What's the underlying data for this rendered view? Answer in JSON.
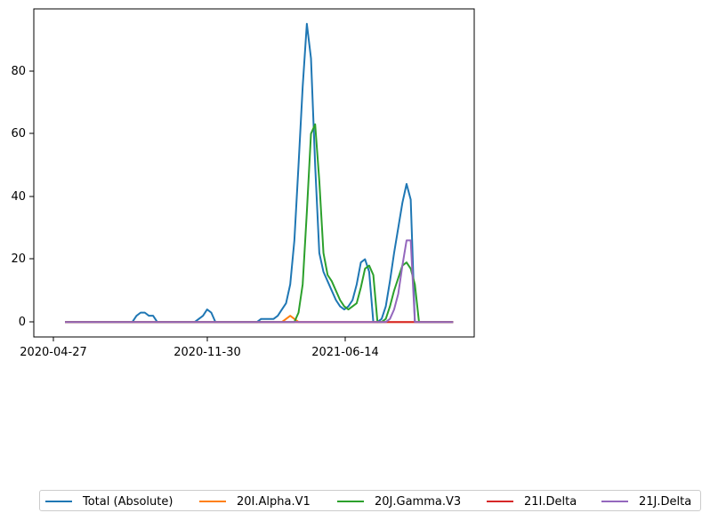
{
  "chart_data": {
    "type": "line",
    "title": "",
    "xlabel": "",
    "ylabel": "",
    "x_tick_labels": [
      "2020-04-27",
      "2020-11-30",
      "2021-06-14"
    ],
    "y_tick_labels": [
      "0",
      "20",
      "40",
      "60",
      "80"
    ],
    "xlim": [
      "2020-03-04",
      "2022-03-16"
    ],
    "ylim": [
      -4.75,
      99.75
    ],
    "grid": false,
    "legend_position": "bottom",
    "x": [
      "2020-04-27",
      "2020-05-04",
      "2020-05-11",
      "2020-05-18",
      "2020-05-25",
      "2020-06-01",
      "2020-06-08",
      "2020-06-15",
      "2020-06-22",
      "2020-06-29",
      "2020-07-06",
      "2020-07-13",
      "2020-07-20",
      "2020-07-27",
      "2020-08-03",
      "2020-08-10",
      "2020-08-17",
      "2020-08-24",
      "2020-08-31",
      "2020-09-07",
      "2020-09-14",
      "2020-09-21",
      "2020-09-28",
      "2020-10-05",
      "2020-10-12",
      "2020-10-19",
      "2020-10-26",
      "2020-11-02",
      "2020-11-09",
      "2020-11-16",
      "2020-11-23",
      "2020-11-30",
      "2020-12-07",
      "2020-12-14",
      "2020-12-21",
      "2020-12-28",
      "2021-01-04",
      "2021-01-11",
      "2021-01-18",
      "2021-01-25",
      "2021-02-01",
      "2021-02-08",
      "2021-02-15",
      "2021-02-22",
      "2021-03-01",
      "2021-03-08",
      "2021-03-15",
      "2021-03-22",
      "2021-03-29",
      "2021-04-05",
      "2021-04-12",
      "2021-04-19",
      "2021-04-26",
      "2021-05-03",
      "2021-05-10",
      "2021-05-17",
      "2021-05-24",
      "2021-05-31",
      "2021-06-07",
      "2021-06-14",
      "2021-06-21",
      "2021-06-28",
      "2021-07-05",
      "2021-07-12",
      "2021-07-19",
      "2021-07-26",
      "2021-08-02",
      "2021-08-09",
      "2021-08-16",
      "2021-08-23",
      "2021-08-30",
      "2021-09-06",
      "2021-09-13",
      "2021-09-20",
      "2021-09-27",
      "2021-10-04",
      "2021-10-11",
      "2021-10-18",
      "2021-10-25",
      "2021-11-01",
      "2021-11-08",
      "2021-11-15",
      "2021-11-22",
      "2021-11-29",
      "2021-12-06",
      "2021-12-13",
      "2021-12-20",
      "2021-12-27",
      "2022-01-03",
      "2022-01-10",
      "2022-01-17",
      "2022-01-24",
      "2022-01-31",
      "2022-02-07"
    ],
    "series": [
      {
        "name": "Total (Absolute)",
        "color": "#1f77b4",
        "values": [
          0,
          0,
          0,
          0,
          0,
          0,
          0,
          0,
          0,
          0,
          0,
          0,
          0,
          0,
          0,
          0,
          0,
          2,
          3,
          3,
          2,
          2,
          0,
          0,
          0,
          0,
          0,
          0,
          0,
          0,
          0,
          0,
          1,
          2,
          4,
          3,
          0,
          0,
          0,
          0,
          0,
          0,
          0,
          0,
          0,
          0,
          0,
          1,
          1,
          1,
          1,
          2,
          4,
          6,
          12,
          26,
          50,
          75,
          95,
          84,
          50,
          22,
          16,
          13,
          10,
          7,
          5,
          4,
          5,
          7,
          12,
          19,
          20,
          16,
          0,
          0,
          1,
          5,
          13,
          22,
          30,
          38,
          44,
          39,
          0,
          0,
          0,
          0,
          0,
          0,
          0,
          0,
          0,
          0
        ]
      },
      {
        "name": "20I.Alpha.V1",
        "color": "#ff7f0e",
        "values": [
          0,
          0,
          0,
          0,
          0,
          0,
          0,
          0,
          0,
          0,
          0,
          0,
          0,
          0,
          0,
          0,
          0,
          0,
          0,
          0,
          0,
          0,
          0,
          0,
          0,
          0,
          0,
          0,
          0,
          0,
          0,
          0,
          0,
          0,
          0,
          0,
          0,
          0,
          0,
          0,
          0,
          0,
          0,
          0,
          0,
          0,
          0,
          0,
          0,
          0,
          0,
          0,
          0,
          1,
          2,
          1,
          0,
          0,
          0,
          0,
          0,
          0,
          0,
          0,
          0,
          0,
          0,
          0,
          0,
          0,
          0,
          0,
          0,
          0,
          0,
          0,
          0,
          0,
          0,
          0,
          0,
          0,
          0,
          0,
          0,
          0,
          0,
          0,
          0,
          0,
          0,
          0,
          0,
          0
        ]
      },
      {
        "name": "20J.Gamma.V3",
        "color": "#2ca02c",
        "values": [
          0,
          0,
          0,
          0,
          0,
          0,
          0,
          0,
          0,
          0,
          0,
          0,
          0,
          0,
          0,
          0,
          0,
          0,
          0,
          0,
          0,
          0,
          0,
          0,
          0,
          0,
          0,
          0,
          0,
          0,
          0,
          0,
          0,
          0,
          0,
          0,
          0,
          0,
          0,
          0,
          0,
          0,
          0,
          0,
          0,
          0,
          0,
          0,
          0,
          0,
          0,
          0,
          0,
          0,
          0,
          0,
          3,
          12,
          35,
          60,
          63,
          45,
          22,
          15,
          13,
          10,
          7,
          5,
          4,
          5,
          6,
          11,
          17,
          18,
          15,
          0,
          0,
          1,
          5,
          10,
          14,
          18,
          19,
          17,
          12,
          0,
          0,
          0,
          0,
          0,
          0,
          0,
          0,
          0
        ]
      },
      {
        "name": "21I.Delta",
        "color": "#d62728",
        "values": [
          0,
          0,
          0,
          0,
          0,
          0,
          0,
          0,
          0,
          0,
          0,
          0,
          0,
          0,
          0,
          0,
          0,
          0,
          0,
          0,
          0,
          0,
          0,
          0,
          0,
          0,
          0,
          0,
          0,
          0,
          0,
          0,
          0,
          0,
          0,
          0,
          0,
          0,
          0,
          0,
          0,
          0,
          0,
          0,
          0,
          0,
          0,
          0,
          0,
          0,
          0,
          0,
          0,
          0,
          0,
          0,
          0,
          0,
          0,
          0,
          0,
          0,
          0,
          0,
          0,
          0,
          0,
          0,
          0,
          0,
          0,
          0,
          0,
          0,
          0,
          0,
          0,
          0,
          0,
          0,
          0,
          0,
          0,
          0,
          0,
          0,
          0,
          0,
          0,
          0,
          0,
          0,
          0,
          0
        ]
      },
      {
        "name": "21J.Delta",
        "color": "#9467bd",
        "values": [
          0,
          0,
          0,
          0,
          0,
          0,
          0,
          0,
          0,
          0,
          0,
          0,
          0,
          0,
          0,
          0,
          0,
          0,
          0,
          0,
          0,
          0,
          0,
          0,
          0,
          0,
          0,
          0,
          0,
          0,
          0,
          0,
          0,
          0,
          0,
          0,
          0,
          0,
          0,
          0,
          0,
          0,
          0,
          0,
          0,
          0,
          0,
          0,
          0,
          0,
          0,
          0,
          0,
          0,
          0,
          0,
          0,
          0,
          0,
          0,
          0,
          0,
          0,
          0,
          0,
          0,
          0,
          0,
          0,
          0,
          0,
          0,
          0,
          0,
          0,
          0,
          0,
          0,
          1,
          4,
          9,
          18,
          26,
          26,
          0,
          0,
          0,
          0,
          0,
          0,
          0,
          0,
          0,
          0
        ]
      }
    ]
  }
}
